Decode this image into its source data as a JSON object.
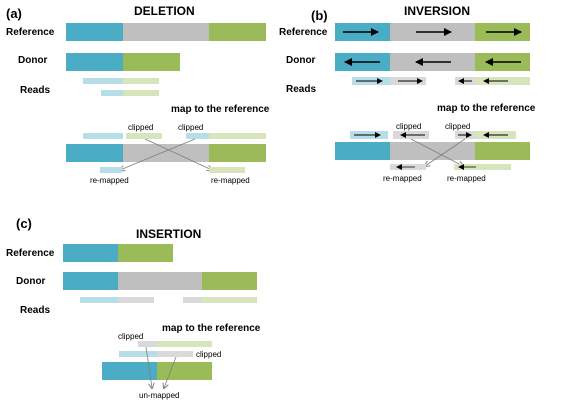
{
  "panels": {
    "a": {
      "tag": "(a)",
      "title": "DELETION",
      "reference_label": "Reference",
      "donor_label": "Donor",
      "reads_label": "Reads",
      "map_caption": "map to the reference",
      "clipped_left": "clipped",
      "clipped_right": "clipped",
      "remapped_left": "re-mapped",
      "remapped_right": "re-mapped"
    },
    "b": {
      "tag": "(b)",
      "title": "INVERSION",
      "reference_label": "Reference",
      "donor_label": "Donor",
      "reads_label": "Reads",
      "map_caption": "map to the reference",
      "clipped_left": "clipped",
      "clipped_right": "clipped",
      "remapped_left": "re-mapped",
      "remapped_right": "re-mapped"
    },
    "c": {
      "tag": "(c)",
      "title": "INSERTION",
      "reference_label": "Reference",
      "donor_label": "Donor",
      "reads_label": "Reads",
      "map_caption": "map to the reference",
      "clipped_top": "clipped",
      "clipped_bottom": "clipped",
      "unmapped": "un-mapped"
    }
  },
  "colors": {
    "blue": "#4bacc6",
    "gray": "#bfbfbf",
    "green": "#9bbb59",
    "light_blue": "#b7dde8",
    "light_gray": "#d9d9d9",
    "light_green": "#d7e4bc",
    "line": "#7f7f7f",
    "text": "#222222"
  }
}
